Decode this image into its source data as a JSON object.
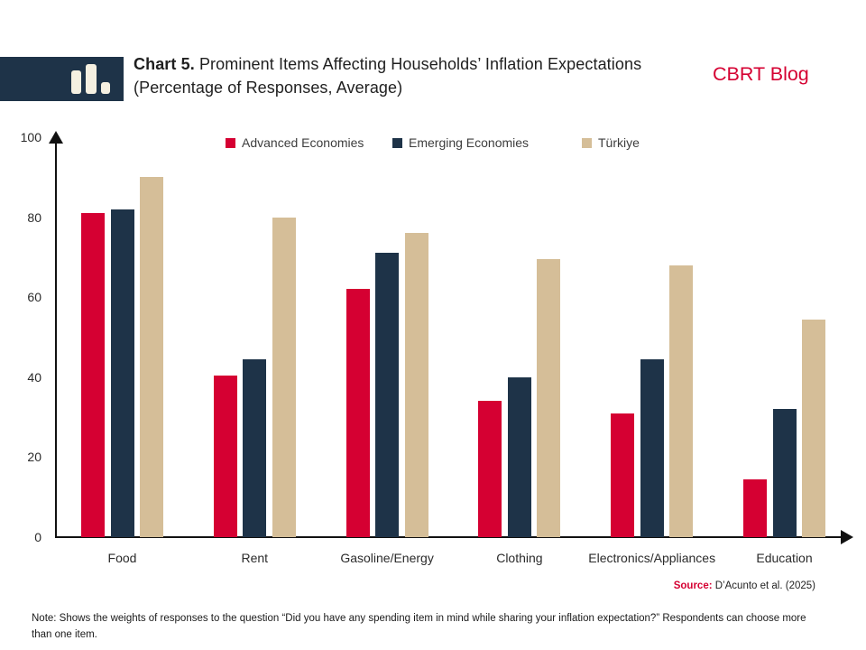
{
  "header": {
    "title_prefix": "Chart 5.",
    "title_rest": "Prominent Items Affecting Households’ Inflation Expectations (Percentage of Responses, Average)",
    "brand": "CBRT Blog",
    "logo_icon": "bar-chart-icon",
    "logo_bg_color": "#1E3348",
    "logo_bar_color": "#F5F0E1"
  },
  "colors": {
    "accent_red": "#D50032",
    "navy": "#1E3348",
    "tan": "#D5BE98",
    "axis": "#111111"
  },
  "chart_data": {
    "type": "bar",
    "title": "Chart 5. Prominent Items Affecting Households’ Inflation Expectations (Percentage of Responses, Average)",
    "categories": [
      "Food",
      "Rent",
      "Gasoline/Energy",
      "Clothing",
      "Electronics/Appliances",
      "Education"
    ],
    "series": [
      {
        "name": "Advanced Economies",
        "color": "#D50032",
        "values": [
          81,
          40.5,
          62,
          34,
          31,
          14.5
        ]
      },
      {
        "name": "Emerging Economies",
        "color": "#1E3348",
        "values": [
          82,
          44.5,
          71,
          40,
          44.5,
          32
        ]
      },
      {
        "name": "Türkiye",
        "color": "#D5BE98",
        "values": [
          90,
          80,
          76,
          69.5,
          68,
          54.5
        ]
      }
    ],
    "xlabel": "",
    "ylabel": "",
    "ylim": [
      0,
      100
    ],
    "yticks": [
      0,
      20,
      40,
      60,
      80,
      100
    ],
    "grid": false,
    "legend_position": "top"
  },
  "source": {
    "label": "Source:",
    "text": "D’Acunto et al. (2025)"
  },
  "note": "Note: Shows the weights of responses to the question “Did you have any spending item in mind while sharing your inflation expectation?” Respondents can choose more than one item."
}
